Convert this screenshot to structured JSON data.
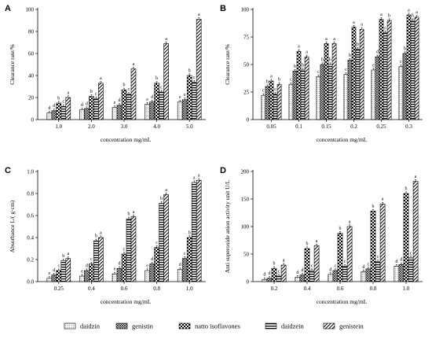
{
  "legend": {
    "entries": [
      {
        "name": "daidzin",
        "pattern": "dots"
      },
      {
        "name": "genistin",
        "pattern": "crosshatch"
      },
      {
        "name": "natto isoflavones",
        "pattern": "checker"
      },
      {
        "name": "daidzein",
        "pattern": "hstripe"
      },
      {
        "name": "genistein",
        "pattern": "diag"
      }
    ]
  },
  "chart_data": [
    {
      "panel": "A",
      "type": "bar",
      "xlabel": "concentration mg/mL",
      "ylabel": "Clearance rate/%",
      "ylim": [
        0,
        100
      ],
      "yticks": [
        "0",
        "20",
        "40",
        "60",
        "80",
        "100"
      ],
      "categories": [
        "1.0",
        "2.0",
        "3.0",
        "4.0",
        "5.0"
      ],
      "series": [
        {
          "name": "daidzin",
          "values": [
            6,
            9,
            11,
            14,
            16
          ],
          "letters": [
            "d",
            "d",
            "e",
            "e",
            "e"
          ]
        },
        {
          "name": "genistin",
          "values": [
            8,
            10,
            13,
            16,
            18
          ],
          "letters": [
            "d",
            "d",
            "d",
            "d",
            "e"
          ]
        },
        {
          "name": "natto isoflavones",
          "values": [
            15,
            21,
            27,
            33,
            40
          ],
          "letters": [
            "b",
            "b",
            "b",
            "b",
            "b"
          ]
        },
        {
          "name": "daidzein",
          "values": [
            12,
            19,
            23,
            25,
            34
          ],
          "letters": [
            "c",
            "c",
            "c",
            "c",
            "c"
          ]
        },
        {
          "name": "genistein",
          "values": [
            20,
            33,
            46,
            69,
            91
          ],
          "letters": [
            "a",
            "a",
            "a",
            "a",
            "a"
          ]
        }
      ]
    },
    {
      "panel": "B",
      "type": "bar",
      "xlabel": "concentration mg/mL",
      "ylabel": "Clearance rate/%",
      "ylim": [
        0,
        100
      ],
      "yticks": [
        "0",
        "25",
        "50",
        "75",
        "100"
      ],
      "categories": [
        "0.05",
        "0.1",
        "0.15",
        "0.2",
        "0.25",
        "0.3"
      ],
      "series": [
        {
          "name": "daidzin",
          "values": [
            22,
            32,
            39,
            41,
            45,
            48
          ],
          "letters": [
            "c",
            "c",
            "c",
            "c",
            "e",
            "c"
          ]
        },
        {
          "name": "genistin",
          "values": [
            30,
            44,
            50,
            54,
            57,
            60
          ],
          "letters": [
            "b",
            "b",
            "b",
            "b",
            "d",
            "b"
          ]
        },
        {
          "name": "natto isoflavones",
          "values": [
            35,
            62,
            69,
            84,
            91,
            95
          ],
          "letters": [
            "a",
            "a",
            "a",
            "a",
            "a",
            "a"
          ]
        },
        {
          "name": "daidzein",
          "values": [
            23,
            45,
            50,
            64,
            79,
            90
          ],
          "letters": [
            "c",
            "b",
            "b",
            "b",
            "c",
            "b"
          ]
        },
        {
          "name": "genistein",
          "values": [
            32,
            57,
            69,
            82,
            90,
            93
          ],
          "letters": [
            "b",
            "a",
            "a",
            "a",
            "b",
            "a"
          ]
        }
      ]
    },
    {
      "panel": "C",
      "type": "bar",
      "xlabel": "concentration mg/mL",
      "ylabel": "Absorbance L/( g·cm)",
      "ylim": [
        0,
        1.0
      ],
      "yticks": [
        "0.0",
        "0.2",
        "0.4",
        "0.6",
        "0.8",
        "1.0"
      ],
      "categories": [
        "0.25",
        "0.4",
        "0.6",
        "0.8",
        "1.0"
      ],
      "series": [
        {
          "name": "daidzin",
          "values": [
            0.03,
            0.05,
            0.07,
            0.1,
            0.11
          ],
          "letters": [
            "e",
            "e",
            "e",
            "e",
            "d"
          ]
        },
        {
          "name": "genistin",
          "values": [
            0.06,
            0.1,
            0.12,
            0.16,
            0.21
          ],
          "letters": [
            "d",
            "d",
            "d",
            "d",
            "c"
          ]
        },
        {
          "name": "natto isoflavones",
          "values": [
            0.1,
            0.16,
            0.25,
            0.31,
            0.4
          ],
          "letters": [
            "c",
            "c",
            "c",
            "c",
            "b"
          ]
        },
        {
          "name": "daidzein",
          "values": [
            0.19,
            0.37,
            0.57,
            0.71,
            0.9
          ],
          "letters": [
            "b",
            "b",
            "b",
            "b",
            "a"
          ]
        },
        {
          "name": "genistein",
          "values": [
            0.21,
            0.4,
            0.59,
            0.79,
            0.92
          ],
          "letters": [
            "a",
            "a",
            "a",
            "a",
            "a"
          ]
        }
      ]
    },
    {
      "panel": "D",
      "type": "bar",
      "xlabel": "concentration mg/mL",
      "ylabel": "Anti superoxide anion activity unit U/L",
      "ylim": [
        0,
        200
      ],
      "yticks": [
        "0",
        "50",
        "100",
        "150",
        "200"
      ],
      "categories": [
        "0.2",
        "0.4",
        "0.6",
        "0.8",
        "1.0"
      ],
      "series": [
        {
          "name": "daidzin",
          "values": [
            4,
            8,
            13,
            18,
            28
          ],
          "letters": [
            "d",
            "d",
            "d",
            "d",
            "d"
          ]
        },
        {
          "name": "genistin",
          "values": [
            6,
            12,
            20,
            23,
            31
          ],
          "letters": [
            "d",
            "d",
            "c",
            "c",
            "d"
          ]
        },
        {
          "name": "natto isoflavones",
          "values": [
            24,
            60,
            88,
            128,
            160
          ],
          "letters": [
            "b",
            "b",
            "b",
            "b",
            "b"
          ]
        },
        {
          "name": "daidzein",
          "values": [
            10,
            20,
            28,
            36,
            43
          ],
          "letters": [
            "c",
            "c",
            "c",
            "c",
            "c"
          ]
        },
        {
          "name": "genistein",
          "values": [
            30,
            65,
            100,
            141,
            182
          ],
          "letters": [
            "a",
            "a",
            "a",
            "a",
            "a"
          ]
        }
      ]
    }
  ]
}
